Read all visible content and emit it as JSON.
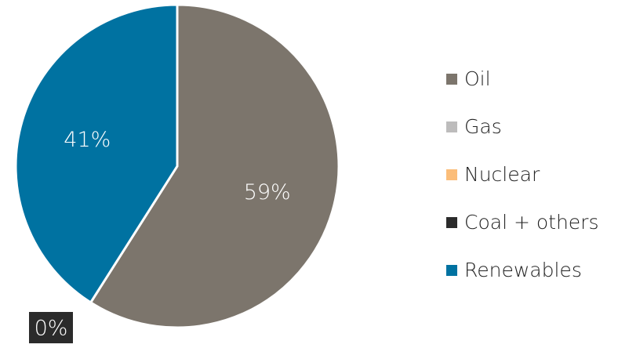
{
  "chart_data": {
    "type": "pie",
    "title": "",
    "legend_position": "right",
    "slices": [
      {
        "name": "Oil",
        "value": 59,
        "label": "59%",
        "color": "#7c756c"
      },
      {
        "name": "Gas",
        "value": 0,
        "label": "",
        "color": "#bdbcbc"
      },
      {
        "name": "Nuclear",
        "value": 0,
        "label": "",
        "color": "#fbbd79"
      },
      {
        "name": "Coal + others",
        "value": 0,
        "label": "0%",
        "color": "#2b2b2b"
      },
      {
        "name": "Renewables",
        "value": 41,
        "label": "41%",
        "color": "#0072a1"
      }
    ]
  }
}
